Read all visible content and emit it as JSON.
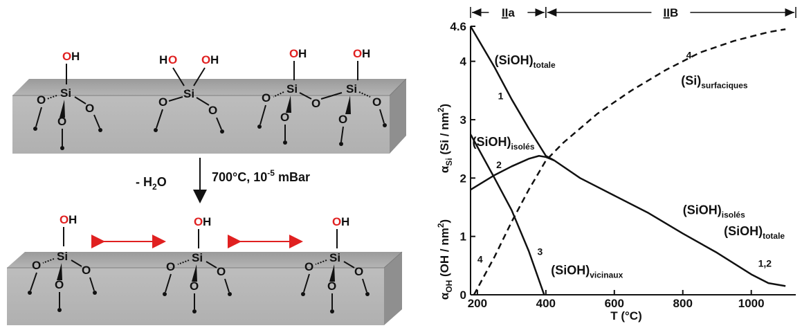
{
  "scheme": {
    "oh_label": "OH",
    "ho_label": "HO",
    "si_label": "Si",
    "o_label": "O",
    "water_loss": "- H",
    "water_sub": "2",
    "water_tail": "O",
    "conditions_prefix": "700°C, 10",
    "conditions_exp": "-5",
    "conditions_suffix": " mBar"
  },
  "chart_data": {
    "type": "line",
    "x_axis": {
      "label": "T (°C)",
      "range": [
        180,
        1130
      ],
      "ticks": [
        "200",
        "400",
        "600",
        "800",
        "1000"
      ]
    },
    "y_axis": {
      "range": [
        0,
        4.6
      ],
      "ticks": [
        "0",
        "1",
        "2",
        "3",
        "4",
        "4.6"
      ],
      "label_si_symbol": "α",
      "label_si_sub": "Si",
      "label_si_text": "(Si / nm",
      "label_si_exp": "2",
      "label_si_end": ")",
      "label_oh_symbol": "α",
      "label_oh_sub": "OH",
      "label_oh_text": "(OH / nm",
      "label_oh_exp": "2",
      "label_oh_end": ")"
    },
    "regions": [
      {
        "label": "II",
        "suffix": "a",
        "range": [
          180,
          400
        ]
      },
      {
        "label": "II",
        "suffix": "B",
        "range": [
          400,
          1130
        ]
      }
    ],
    "series": [
      {
        "name": "1",
        "style": "solid",
        "x": [
          180,
          250,
          300,
          350,
          400,
          425
        ],
        "y": [
          4.6,
          3.9,
          3.35,
          2.85,
          2.38,
          2.3
        ]
      },
      {
        "name": "2",
        "style": "solid",
        "x": [
          180,
          250,
          300,
          350,
          380,
          400,
          425
        ],
        "y": [
          1.8,
          2.05,
          2.2,
          2.33,
          2.38,
          2.36,
          2.3
        ]
      },
      {
        "name": "1,2",
        "style": "solid",
        "x": [
          425,
          500,
          600,
          700,
          800,
          900,
          1000,
          1050,
          1100
        ],
        "y": [
          2.3,
          2.0,
          1.7,
          1.4,
          1.05,
          0.72,
          0.35,
          0.2,
          0.15
        ]
      },
      {
        "name": "3",
        "style": "solid",
        "x": [
          180,
          250,
          300,
          350,
          395
        ],
        "y": [
          2.75,
          2.0,
          1.45,
          0.75,
          0.0
        ]
      },
      {
        "name": "4",
        "style": "dashed",
        "x": [
          190,
          250,
          300,
          350,
          400,
          450,
          550,
          650,
          750,
          850,
          950,
          1050,
          1100
        ],
        "y": [
          0.0,
          0.65,
          1.25,
          1.8,
          2.3,
          2.6,
          3.1,
          3.5,
          3.85,
          4.15,
          4.35,
          4.5,
          4.55
        ]
      }
    ],
    "annotations": [
      {
        "main": "(SiOH)",
        "sub": "totale",
        "x": 250,
        "y": 3.95
      },
      {
        "main": "(SiOH)",
        "sub": "isolés",
        "x": 185,
        "y": 2.55
      },
      {
        "main": "(Si)",
        "sub": "surfaciques",
        "x": 795,
        "y": 3.6
      },
      {
        "main": "(SiOH)",
        "sub": "isolés",
        "x": 800,
        "y": 1.38
      },
      {
        "main": "(SiOH)",
        "sub": "totale",
        "x": 920,
        "y": 1.02
      },
      {
        "main": "(SiOH)",
        "sub": "vicinaux",
        "x": 415,
        "y": 0.35
      }
    ],
    "curve_numbers": [
      {
        "text": "1",
        "x": 260,
        "y": 3.35
      },
      {
        "text": "2",
        "x": 255,
        "y": 2.17
      },
      {
        "text": "3",
        "x": 375,
        "y": 0.68
      },
      {
        "text": "4",
        "x": 200,
        "y": 0.55
      },
      {
        "text": "4",
        "x": 810,
        "y": 4.05
      },
      {
        "text": "1,2",
        "x": 1020,
        "y": 0.48
      }
    ]
  }
}
